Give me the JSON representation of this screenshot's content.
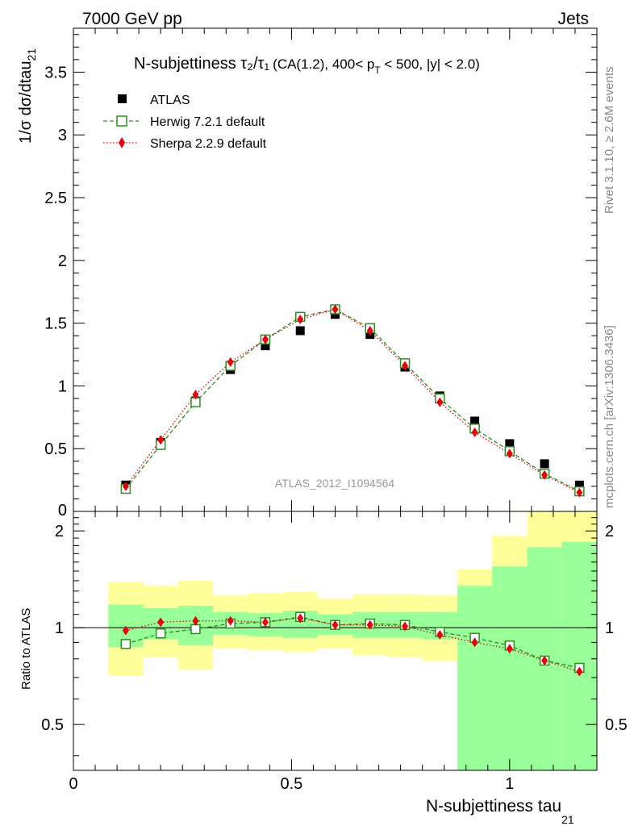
{
  "header": {
    "left": "7000 GeV pp",
    "right": "Jets"
  },
  "title": {
    "prefix": "N-subjettiness ",
    "ratio": "τ₂/τ₁",
    "suffix": "(CA(1.2), 400< p",
    "sub": "T",
    "tail": " < 500, |y| < 2.0)"
  },
  "side": {
    "rivet": "Rivet 3.1.10, ≥ 2.6M events",
    "mcplots": "mcplots.cern.ch [arXiv:1306.3436]"
  },
  "watermark": "ATLAS_2012_I1094564",
  "axes": {
    "ylabel_main": "1/σ dσ/dtau",
    "ylabel_main_sub": "21",
    "ylabel_ratio": "Ratio to ATLAS",
    "xlabel": "N-subjettiness tau",
    "xlabel_sub": "21"
  },
  "legend": [
    {
      "name": "ATLAS",
      "marker": "square-filled",
      "color": "#000000"
    },
    {
      "name": "Herwig 7.2.1 default",
      "marker": "square-open",
      "color": "#2e8b1e"
    },
    {
      "name": "Sherpa 2.2.9 default",
      "marker": "diamond",
      "color": "#e8000b"
    }
  ],
  "chart_data": {
    "type": "line",
    "x": [
      0.12,
      0.2,
      0.28,
      0.36,
      0.44,
      0.52,
      0.6,
      0.68,
      0.76,
      0.84,
      0.92,
      1.0,
      1.08,
      1.16
    ],
    "bin_edges": [
      0.08,
      0.16,
      0.24,
      0.32,
      0.4,
      0.48,
      0.56,
      0.64,
      0.72,
      0.8,
      0.88,
      0.96,
      1.04,
      1.12,
      1.2
    ],
    "xlim": [
      0,
      1.2
    ],
    "main": {
      "ylim": [
        0,
        3.85
      ],
      "yticks": [
        0.5,
        1,
        1.5,
        2,
        2.5,
        3,
        3.5
      ],
      "series": [
        {
          "name": "ATLAS",
          "values": [
            0.21,
            0.55,
            0.88,
            1.13,
            1.32,
            1.44,
            1.57,
            1.41,
            1.15,
            0.92,
            0.72,
            0.54,
            0.38,
            0.21
          ]
        },
        {
          "name": "Herwig 7.2.1 default",
          "values": [
            0.18,
            0.53,
            0.87,
            1.16,
            1.37,
            1.55,
            1.61,
            1.46,
            1.18,
            0.9,
            0.66,
            0.48,
            0.3,
            0.16
          ]
        },
        {
          "name": "Sherpa 2.2.9 default",
          "values": [
            0.2,
            0.57,
            0.93,
            1.19,
            1.37,
            1.53,
            1.61,
            1.44,
            1.16,
            0.87,
            0.63,
            0.46,
            0.29,
            0.15
          ]
        }
      ]
    },
    "ratio": {
      "ylim": [
        0.36,
        2.3
      ],
      "yscale": "log",
      "yticks": [
        0.5,
        1,
        2
      ],
      "series": [
        {
          "name": "Herwig 7.2.1 default",
          "values": [
            0.89,
            0.96,
            0.99,
            1.03,
            1.04,
            1.08,
            1.02,
            1.03,
            1.02,
            0.97,
            0.93,
            0.88,
            0.79,
            0.75
          ]
        },
        {
          "name": "Sherpa 2.2.9 default",
          "values": [
            0.98,
            1.04,
            1.05,
            1.05,
            1.04,
            1.07,
            1.02,
            1.02,
            1.01,
            0.95,
            0.9,
            0.86,
            0.79,
            0.73
          ]
        }
      ],
      "band_inner": [
        [
          0.87,
          1.18
        ],
        [
          0.92,
          1.15
        ],
        [
          0.88,
          1.17
        ],
        [
          0.95,
          1.12
        ],
        [
          0.94,
          1.11
        ],
        [
          0.93,
          1.13
        ],
        [
          0.95,
          1.1
        ],
        [
          0.93,
          1.12
        ],
        [
          0.93,
          1.12
        ],
        [
          0.92,
          1.12
        ],
        [
          0.3,
          1.35
        ],
        [
          0.3,
          1.55
        ],
        [
          0.3,
          1.78
        ],
        [
          0.3,
          1.85
        ]
      ],
      "band_outer": [
        [
          0.71,
          1.39
        ],
        [
          0.81,
          1.35
        ],
        [
          0.74,
          1.4
        ],
        [
          0.86,
          1.26
        ],
        [
          0.85,
          1.28
        ],
        [
          0.84,
          1.29
        ],
        [
          0.86,
          1.23
        ],
        [
          0.82,
          1.27
        ],
        [
          0.81,
          1.27
        ],
        [
          0.79,
          1.26
        ],
        [
          0.3,
          1.52
        ],
        [
          0.3,
          1.93
        ],
        [
          0.3,
          2.4
        ],
        [
          0.3,
          2.4
        ]
      ],
      "reference_line": 1
    },
    "colors": {
      "inner_band": "#99ff99",
      "outer_band": "#ffff99",
      "herwig": "#2e8b1e",
      "sherpa": "#e8000b",
      "data": "#000000"
    }
  }
}
